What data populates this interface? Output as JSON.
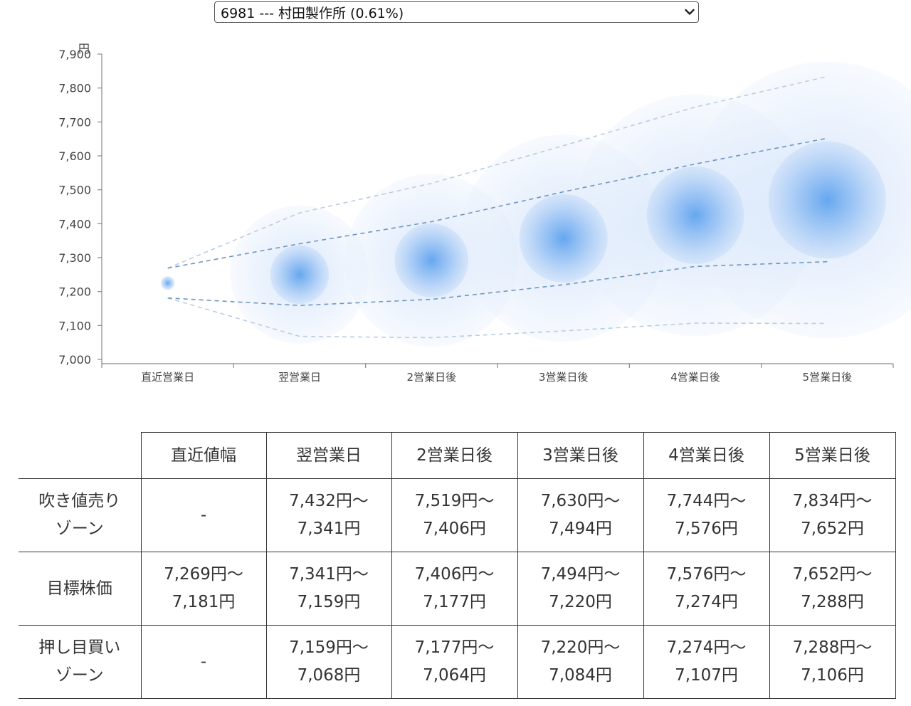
{
  "selector": {
    "value": "6981 --- 村田製作所 (0.61%)"
  },
  "chart_data": {
    "type": "bubble-forecast",
    "y_unit": "円",
    "ylim": [
      7000,
      7900
    ],
    "y_ticks": [
      "7,000",
      "7,100",
      "7,200",
      "7,300",
      "7,400",
      "7,500",
      "7,600",
      "7,700",
      "7,800",
      "7,900"
    ],
    "categories": [
      "直近営業日",
      "翌営業日",
      "2営業日後",
      "3営業日後",
      "4営業日後",
      "5営業日後"
    ],
    "center": [
      7225,
      7250,
      7292,
      7357,
      7425,
      7470
    ],
    "target_upper": [
      7269,
      7341,
      7406,
      7494,
      7576,
      7652
    ],
    "target_lower": [
      7181,
      7159,
      7177,
      7220,
      7274,
      7288
    ],
    "outer_upper": [
      7269,
      7432,
      7519,
      7630,
      7744,
      7834
    ],
    "outer_lower": [
      7181,
      7068,
      7064,
      7084,
      7107,
      7106
    ],
    "colors": {
      "bubble": "#5a9ee8",
      "dash": "#6b8fb8"
    }
  },
  "table": {
    "headers": [
      "",
      "直近値幅",
      "翌営業日",
      "2営業日後",
      "3営業日後",
      "4営業日後",
      "5営業日後"
    ],
    "rows": [
      {
        "label": [
          "吹き値売り",
          "ゾーン"
        ],
        "cells": [
          [
            "-"
          ],
          [
            "7,432円〜",
            "7,341円"
          ],
          [
            "7,519円〜",
            "7,406円"
          ],
          [
            "7,630円〜",
            "7,494円"
          ],
          [
            "7,744円〜",
            "7,576円"
          ],
          [
            "7,834円〜",
            "7,652円"
          ]
        ]
      },
      {
        "label": [
          "目標株価"
        ],
        "cells": [
          [
            "7,269円〜",
            "7,181円"
          ],
          [
            "7,341円〜",
            "7,159円"
          ],
          [
            "7,406円〜",
            "7,177円"
          ],
          [
            "7,494円〜",
            "7,220円"
          ],
          [
            "7,576円〜",
            "7,274円"
          ],
          [
            "7,652円〜",
            "7,288円"
          ]
        ]
      },
      {
        "label": [
          "押し目買い",
          "ゾーン"
        ],
        "cells": [
          [
            "-"
          ],
          [
            "7,159円〜",
            "7,068円"
          ],
          [
            "7,177円〜",
            "7,064円"
          ],
          [
            "7,220円〜",
            "7,084円"
          ],
          [
            "7,274円〜",
            "7,107円"
          ],
          [
            "7,288円〜",
            "7,106円"
          ]
        ]
      }
    ]
  }
}
